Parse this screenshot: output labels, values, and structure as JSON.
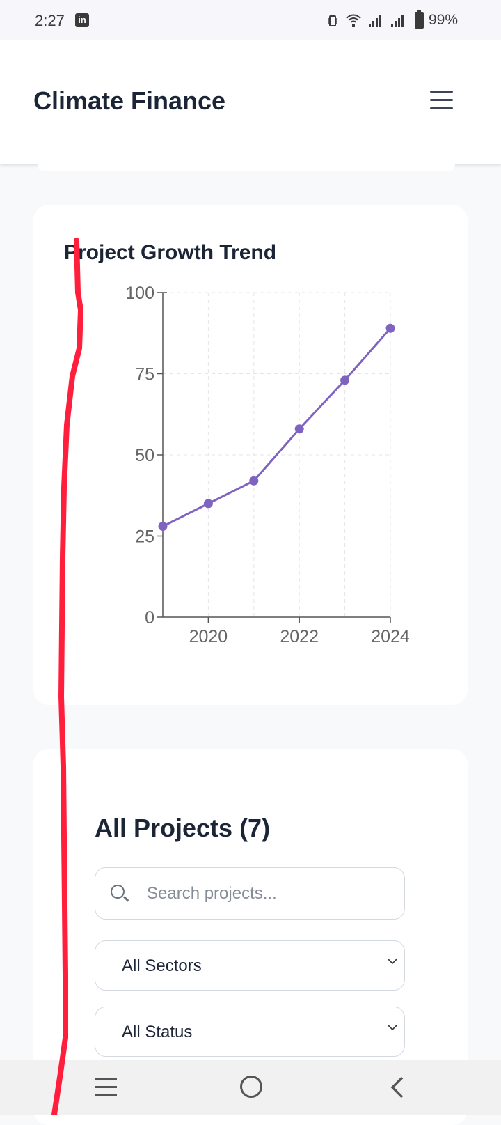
{
  "status_bar": {
    "time": "2:27",
    "battery": "99%",
    "notification_icon": "linkedin-icon"
  },
  "header": {
    "title": "Climate Finance",
    "menu_icon": "hamburger-icon"
  },
  "chart_card": {
    "title": "Project Growth Trend"
  },
  "chart_data": {
    "type": "line",
    "title": "Project Growth Trend",
    "x": [
      2019,
      2020,
      2021,
      2022,
      2023,
      2024
    ],
    "series": [
      {
        "values": [
          28,
          35,
          42,
          58,
          73,
          89
        ],
        "color": "#7e63c0"
      }
    ],
    "x_ticks": [
      "2020",
      "2022",
      "2024"
    ],
    "y_ticks": [
      "0",
      "25",
      "50",
      "75",
      "100"
    ],
    "xlim": [
      2019,
      2024
    ],
    "ylim": [
      0,
      100
    ],
    "grid": true,
    "xlabel": "",
    "ylabel": ""
  },
  "projects": {
    "title": "All Projects (7)",
    "search_placeholder": "Search projects...",
    "sector_filter": "All Sectors",
    "status_filter": "All Status"
  },
  "colors": {
    "accent": "#7e63c0",
    "annotation": "#ff1f3d"
  }
}
